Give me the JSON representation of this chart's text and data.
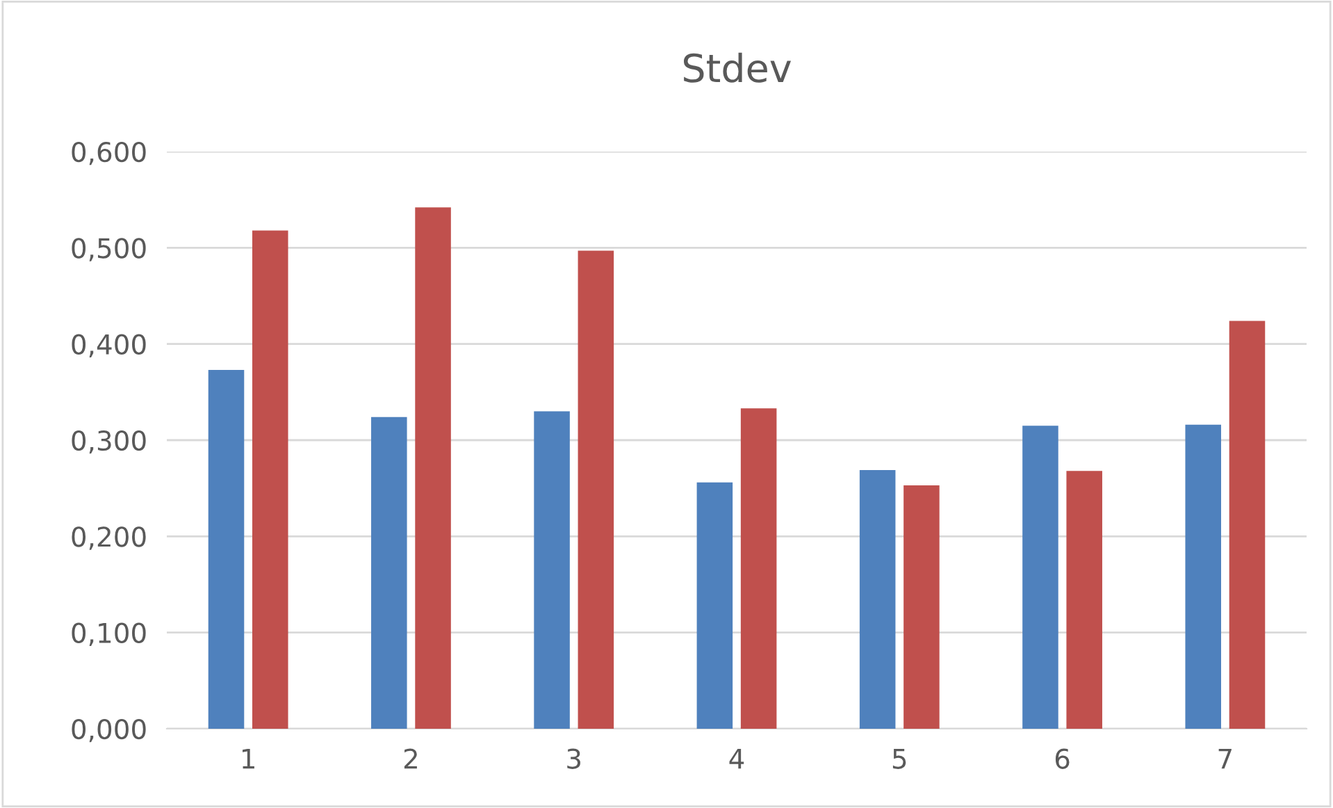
{
  "chart_data": {
    "type": "bar",
    "title": "Stdev",
    "categories": [
      "1",
      "2",
      "3",
      "4",
      "5",
      "6",
      "7"
    ],
    "series": [
      {
        "color": "#4f81bd",
        "values": [
          0.373,
          0.324,
          0.33,
          0.256,
          0.269,
          0.315,
          0.316
        ]
      },
      {
        "color": "#c0504d",
        "values": [
          0.518,
          0.542,
          0.497,
          0.333,
          0.253,
          0.268,
          0.424
        ]
      }
    ],
    "ylim": [
      0,
      0.6
    ],
    "yticks": [
      {
        "value": 0,
        "label": "0,000"
      },
      {
        "value": 0.1,
        "label": "0,100"
      },
      {
        "value": 0.2,
        "label": "0,200"
      },
      {
        "value": 0.3,
        "label": "0,300"
      },
      {
        "value": 0.4,
        "label": "0,400"
      },
      {
        "value": 0.5,
        "label": "0,500"
      },
      {
        "value": 0.6,
        "label": "0,600"
      }
    ],
    "grid": "y"
  }
}
